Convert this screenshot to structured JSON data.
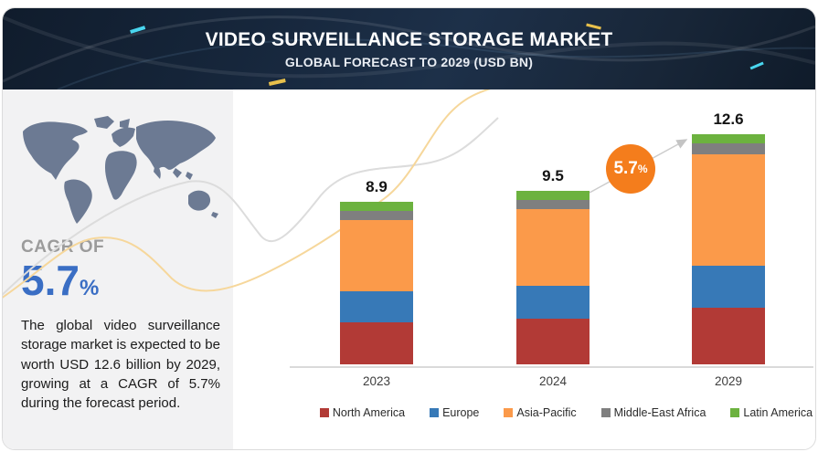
{
  "header": {
    "title": "VIDEO SURVEILLANCE STORAGE MARKET",
    "subtitle": "GLOBAL FORECAST TO 2029 (USD BN)"
  },
  "sidebar": {
    "cagr_label": "CAGR OF",
    "cagr_value": "5.7",
    "cagr_unit": "%",
    "description": "The global video surveillance storage market is expected to be worth USD 12.6 billion by 2029, growing at a CAGR of 5.7% during the forecast period."
  },
  "badge": {
    "value": "5.7",
    "unit": "%",
    "color": "#f47d1c"
  },
  "chart_data": {
    "type": "bar",
    "stacked": true,
    "title": "Video Surveillance Storage Market, Global Forecast (USD BN)",
    "categories": [
      "2023",
      "2024",
      "2029"
    ],
    "totals": [
      8.9,
      9.5,
      12.6
    ],
    "total_labels": [
      "8.9",
      "9.5",
      "12.6"
    ],
    "series": [
      {
        "name": "North America",
        "color": "#b23a36",
        "values": [
          2.3,
          2.5,
          3.1
        ]
      },
      {
        "name": "Europe",
        "color": "#3779b7",
        "values": [
          1.7,
          1.8,
          2.3
        ]
      },
      {
        "name": "Asia-Pacific",
        "color": "#fb9a4a",
        "values": [
          3.9,
          4.2,
          6.1
        ]
      },
      {
        "name": "Middle-East Africa",
        "color": "#7f7f7f",
        "values": [
          0.5,
          0.5,
          0.6
        ]
      },
      {
        "name": "Latin America",
        "color": "#6cb23f",
        "values": [
          0.5,
          0.5,
          0.5
        ]
      }
    ],
    "annotation": "5.7% CAGR arrow from 2024 to 2029",
    "xlabel": "",
    "ylabel": "",
    "ylim": [
      0,
      13
    ],
    "grid": false,
    "legend_position": "bottom"
  }
}
